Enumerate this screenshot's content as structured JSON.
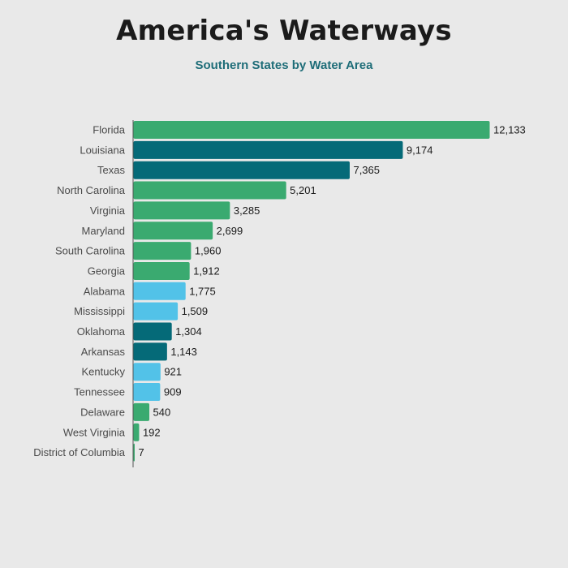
{
  "chart_data": {
    "type": "bar",
    "orientation": "horizontal",
    "title": "America's Waterways",
    "subtitle": "Southern States by Water Area",
    "xlabel": "",
    "ylabel": "",
    "categories": [
      "Florida",
      "Louisiana",
      "Texas",
      "North Carolina",
      "Virginia",
      "Maryland",
      "South Carolina",
      "Georgia",
      "Alabama",
      "Mississippi",
      "Oklahoma",
      "Arkansas",
      "Kentucky",
      "Tennessee",
      "Delaware",
      "West Virginia",
      "District of Columbia"
    ],
    "values": [
      12133,
      9174,
      7365,
      5201,
      3285,
      2699,
      1960,
      1912,
      1775,
      1509,
      1304,
      1143,
      921,
      909,
      540,
      192,
      7
    ],
    "value_labels": [
      "12,133",
      "9,174",
      "7,365",
      "5,201",
      "3,285",
      "2,699",
      "1,960",
      "1,912",
      "1,775",
      "1,509",
      "1,304",
      "1,143",
      "921",
      "909",
      "540",
      "192",
      "7"
    ],
    "bar_colors": [
      "#3aaa70",
      "#056a78",
      "#056a78",
      "#3aaa70",
      "#3aaa70",
      "#3aaa70",
      "#3aaa70",
      "#3aaa70",
      "#52c2e8",
      "#52c2e8",
      "#056a78",
      "#056a78",
      "#52c2e8",
      "#52c2e8",
      "#3aaa70",
      "#3aaa70",
      "#3aaa70"
    ],
    "xlim": [
      0,
      12133
    ],
    "grid": false,
    "legend": "none"
  },
  "colors": {
    "background": "#e9e9e9",
    "axis": "#555555",
    "title": "#1b1b1b",
    "subtitle": "#1e6d78"
  }
}
